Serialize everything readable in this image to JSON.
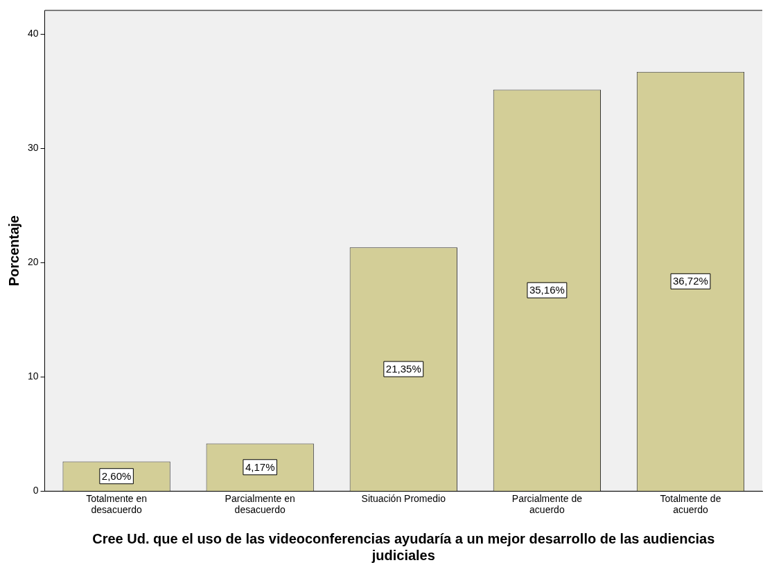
{
  "chart_data": {
    "type": "bar",
    "xlabel": "Cree Ud. que el uso de las videoconferencias ayudaría a un mejor desarrollo de las audiencias judiciales",
    "ylabel": "Porcentaje",
    "categories": [
      "Totalmente en desacuerdo",
      "Parcialmente en desacuerdo",
      "Situación Promedio",
      "Parcialmente de acuerdo",
      "Totalmente de acuerdo"
    ],
    "values": [
      2.6,
      4.17,
      21.35,
      35.16,
      36.72
    ],
    "value_labels": [
      "2,60%",
      "4,17%",
      "21,35%",
      "35,16%",
      "36,72%"
    ],
    "color": "#d3ce97",
    "ylim": [
      0,
      42.1
    ],
    "yticks": [
      0,
      10,
      20,
      30,
      40
    ],
    "grid": false,
    "legend": false
  }
}
